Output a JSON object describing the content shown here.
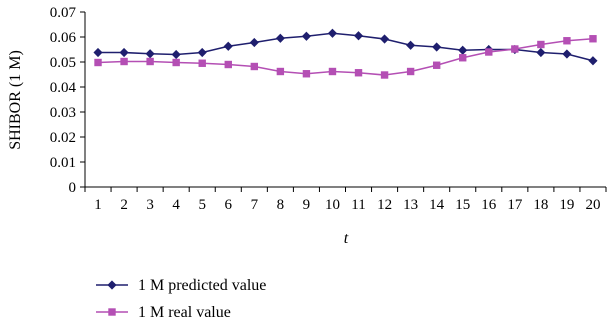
{
  "chart_data": {
    "type": "line",
    "title": "",
    "xlabel": "t",
    "ylabel": "SHIBOR (1 M)",
    "x": [
      1,
      2,
      3,
      4,
      5,
      6,
      7,
      8,
      9,
      10,
      11,
      12,
      13,
      14,
      15,
      16,
      17,
      18,
      19,
      20
    ],
    "xlim": [
      0.5,
      20.5
    ],
    "ylim": [
      0,
      0.07
    ],
    "yticks": [
      0,
      0.01,
      0.02,
      0.03,
      0.04,
      0.05,
      0.06,
      0.07
    ],
    "ytick_labels": [
      "0",
      "0.01",
      "0.02",
      "0.03",
      "0.04",
      "0.05",
      "0.06",
      "0.07"
    ],
    "xtick_labels": [
      "1",
      "2",
      "3",
      "4",
      "5",
      "6",
      "7",
      "8",
      "9",
      "10",
      "11",
      "12",
      "13",
      "14",
      "15",
      "16",
      "17",
      "18",
      "19",
      "20"
    ],
    "grid": false,
    "legend": "bottom-left",
    "series": [
      {
        "name": "1 M predicted value",
        "marker": "diamond",
        "color": "#1f1f6e",
        "values": [
          0.0538,
          0.0538,
          0.0533,
          0.053,
          0.0538,
          0.0563,
          0.0578,
          0.0595,
          0.0603,
          0.0615,
          0.0605,
          0.0592,
          0.0567,
          0.056,
          0.0547,
          0.055,
          0.055,
          0.0538,
          0.0532,
          0.0505
        ]
      },
      {
        "name": "1 M real value",
        "marker": "square",
        "color": "#b44fb4",
        "values": [
          0.0498,
          0.0502,
          0.0502,
          0.0498,
          0.0495,
          0.049,
          0.0482,
          0.0462,
          0.0453,
          0.0462,
          0.0457,
          0.0448,
          0.0462,
          0.0487,
          0.0517,
          0.054,
          0.0552,
          0.057,
          0.0585,
          0.0593
        ]
      }
    ]
  }
}
